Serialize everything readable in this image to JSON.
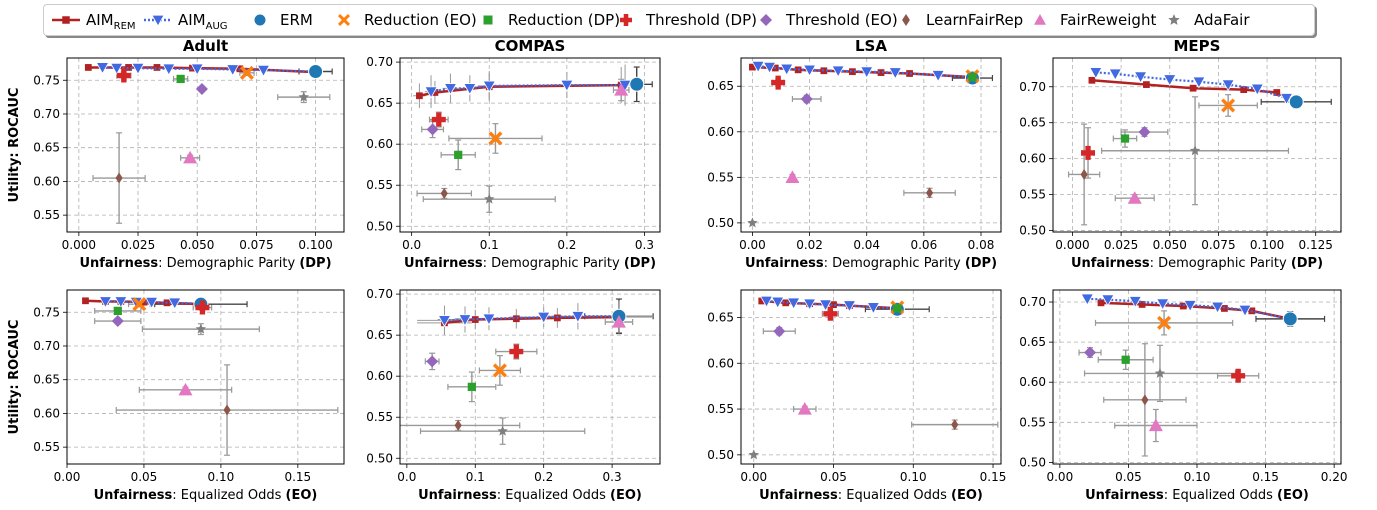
{
  "legend": [
    {
      "label": "AIM",
      "sub": "REM",
      "key": "aim_rem"
    },
    {
      "label": "AIM",
      "sub": "AUG",
      "key": "aim_aug"
    },
    {
      "label": "ERM",
      "key": "erm"
    },
    {
      "label": "Reduction (EO)",
      "key": "red_eo"
    },
    {
      "label": "Reduction (DP)",
      "key": "red_dp"
    },
    {
      "label": "Threshold (DP)",
      "key": "thr_dp"
    },
    {
      "label": "Threshold (EO)",
      "key": "thr_eo"
    },
    {
      "label": "LearnFairRep",
      "key": "lfr"
    },
    {
      "label": "FairReweight",
      "key": "frw"
    },
    {
      "label": "AdaFair",
      "key": "ada"
    }
  ],
  "styles": {
    "aim_rem": {
      "color": "#b22222",
      "marker": "square"
    },
    "aim_aug": {
      "color": "#4169e1",
      "marker": "tri_down"
    },
    "erm": {
      "color": "#1f77b4",
      "marker": "circle"
    },
    "red_eo": {
      "color": "#ff7f0e",
      "marker": "x"
    },
    "red_dp": {
      "color": "#2ca02c",
      "marker": "square"
    },
    "thr_dp": {
      "color": "#d62728",
      "marker": "plus"
    },
    "thr_eo": {
      "color": "#9467bd",
      "marker": "diamond"
    },
    "lfr": {
      "color": "#8c564b",
      "marker": "thin_diamond"
    },
    "frw": {
      "color": "#e377c2",
      "marker": "tri_up"
    },
    "ada": {
      "color": "#7f7f7f",
      "marker": "star"
    }
  },
  "ylabel_prefix": "Utility",
  "ylabel_suffix": ": ROCAUC",
  "xlabel_prefix": "Unfairness",
  "xlabel_dp": ": Demographic Parity ",
  "xlabel_dp_bold": "(DP)",
  "xlabel_eo": ": Equalized Odds ",
  "xlabel_eo_bold": "(EO)",
  "chart_data": [
    {
      "type": "scatter",
      "title": "Adult",
      "metric": "DP",
      "xlim": [
        -0.005,
        0.112
      ],
      "ylim": [
        0.525,
        0.783
      ],
      "xticks": [
        0,
        0.025,
        0.05,
        0.075,
        0.1
      ],
      "xtick_labels": [
        "0.000",
        "0.025",
        "0.050",
        "0.075",
        "0.100"
      ],
      "yticks": [
        0.55,
        0.6,
        0.65,
        0.7,
        0.75
      ],
      "ytick_labels": [
        "0.55",
        "0.60",
        "0.65",
        "0.70",
        "0.75"
      ],
      "aim_rem": [
        [
          0.004,
          0.769
        ],
        [
          0.021,
          0.769
        ],
        [
          0.033,
          0.769
        ],
        [
          0.048,
          0.768
        ],
        [
          0.068,
          0.767
        ],
        [
          0.1,
          0.762
        ]
      ],
      "aim_aug": [
        [
          0.01,
          0.769
        ],
        [
          0.016,
          0.768
        ],
        [
          0.025,
          0.768
        ],
        [
          0.038,
          0.767
        ],
        [
          0.05,
          0.767
        ],
        [
          0.065,
          0.766
        ],
        [
          0.078,
          0.765
        ],
        [
          0.1,
          0.763
        ]
      ],
      "erm": [
        0.1,
        0.763,
        0.007,
        0.004
      ],
      "red_eo": [
        0.071,
        0.761,
        0.003,
        0.004
      ],
      "red_dp": [
        0.043,
        0.752,
        0.003,
        0.004
      ],
      "thr_dp": [
        0.019,
        0.757,
        0.003,
        0.005
      ],
      "thr_eo": [
        0.052,
        0.737,
        0.0,
        0.003
      ],
      "lfr": [
        0.017,
        0.605,
        0.011,
        0.067
      ],
      "frw": [
        0.047,
        0.635,
        0.004,
        0.004
      ],
      "ada": [
        0.095,
        0.725,
        0.011,
        0.008
      ]
    },
    {
      "type": "scatter",
      "title": "COMPAS",
      "metric": "DP",
      "xlim": [
        -0.015,
        0.32
      ],
      "ylim": [
        0.493,
        0.705
      ],
      "xticks": [
        0,
        0.1,
        0.2,
        0.3
      ],
      "xtick_labels": [
        "0.0",
        "0.1",
        "0.2",
        "0.3"
      ],
      "yticks": [
        0.5,
        0.55,
        0.6,
        0.65,
        0.7
      ],
      "ytick_labels": [
        "0.50",
        "0.55",
        "0.60",
        "0.65",
        "0.70"
      ],
      "aim_rem": [
        [
          0.01,
          0.659,
          0.008,
          0.015
        ],
        [
          0.03,
          0.663,
          0.01,
          0.014
        ],
        [
          0.1,
          0.67,
          0.015,
          0.016
        ],
        [
          0.27,
          0.672,
          0.02,
          0.022
        ]
      ],
      "aim_aug": [
        [
          0.025,
          0.664,
          0.008,
          0.02
        ],
        [
          0.05,
          0.668,
          0.01,
          0.018
        ],
        [
          0.075,
          0.668,
          0.012,
          0.016
        ],
        [
          0.1,
          0.671,
          0.015,
          0.018
        ],
        [
          0.2,
          0.672,
          0.02,
          0.016
        ],
        [
          0.275,
          0.672,
          0.02,
          0.025
        ]
      ],
      "erm": [
        0.29,
        0.673,
        0.02,
        0.021
      ],
      "red_eo": [
        0.108,
        0.607,
        0.06,
        0.018
      ],
      "red_dp": [
        0.06,
        0.587,
        0.022,
        0.018
      ],
      "thr_dp": [
        0.035,
        0.63,
        0.012,
        0.009
      ],
      "thr_eo": [
        0.027,
        0.618,
        0.014,
        0.01
      ],
      "lfr": [
        0.042,
        0.54,
        0.035,
        0.006
      ],
      "frw": [
        0.27,
        0.666,
        0.01,
        0.013
      ],
      "ada": [
        0.1,
        0.533,
        0.085,
        0.016
      ]
    },
    {
      "type": "scatter",
      "title": "LSA",
      "metric": "DP",
      "xlim": [
        -0.004,
        0.087
      ],
      "ylim": [
        0.49,
        0.681
      ],
      "xticks": [
        0,
        0.02,
        0.04,
        0.06,
        0.08
      ],
      "xtick_labels": [
        "0.00",
        "0.02",
        "0.04",
        "0.06",
        "0.08"
      ],
      "yticks": [
        0.5,
        0.55,
        0.6,
        0.65
      ],
      "ytick_labels": [
        "0.50",
        "0.55",
        "0.60",
        "0.65"
      ],
      "aim_rem": [
        [
          0.0,
          0.671
        ],
        [
          0.008,
          0.67
        ],
        [
          0.016,
          0.668
        ],
        [
          0.025,
          0.667
        ],
        [
          0.035,
          0.666
        ],
        [
          0.045,
          0.665
        ],
        [
          0.055,
          0.664
        ],
        [
          0.077,
          0.66
        ]
      ],
      "aim_aug": [
        [
          0.002,
          0.672
        ],
        [
          0.006,
          0.671
        ],
        [
          0.012,
          0.669
        ],
        [
          0.02,
          0.668
        ],
        [
          0.03,
          0.667
        ],
        [
          0.04,
          0.666
        ],
        [
          0.05,
          0.665
        ],
        [
          0.065,
          0.662
        ],
        [
          0.077,
          0.66
        ]
      ],
      "erm": [
        0.077,
        0.659,
        0.007,
        0.004
      ],
      "red_eo": [
        0.077,
        0.661,
        0.0,
        0.002
      ],
      "red_dp": [
        0.077,
        0.66,
        0.0,
        0.002
      ],
      "thr_dp": [
        0.009,
        0.654,
        0.002,
        0.004
      ],
      "thr_eo": [
        0.019,
        0.636,
        0.005,
        0.004
      ],
      "lfr": [
        0.062,
        0.533,
        0.009,
        0.005
      ],
      "frw": [
        0.014,
        0.55,
        0.0,
        0.003
      ],
      "ada": [
        0.0,
        0.5,
        0.0,
        0.0
      ]
    },
    {
      "type": "scatter",
      "title": "MEPS",
      "metric": "DP",
      "xlim": [
        -0.01,
        0.138
      ],
      "ylim": [
        0.498,
        0.74
      ],
      "xticks": [
        0,
        0.025,
        0.05,
        0.075,
        0.1,
        0.125
      ],
      "xtick_labels": [
        "0.000",
        "0.025",
        "0.050",
        "0.075",
        "0.100",
        "0.125"
      ],
      "yticks": [
        0.5,
        0.55,
        0.6,
        0.65,
        0.7
      ],
      "ytick_labels": [
        "0.50",
        "0.55",
        "0.60",
        "0.65",
        "0.70"
      ],
      "aim_rem": [
        [
          0.01,
          0.709
        ],
        [
          0.038,
          0.703
        ],
        [
          0.062,
          0.698
        ],
        [
          0.088,
          0.696
        ],
        [
          0.105,
          0.692
        ],
        [
          0.115,
          0.679
        ]
      ],
      "aim_aug": [
        [
          0.012,
          0.72
        ],
        [
          0.022,
          0.718
        ],
        [
          0.035,
          0.714
        ],
        [
          0.05,
          0.71
        ],
        [
          0.065,
          0.707
        ],
        [
          0.08,
          0.703
        ],
        [
          0.095,
          0.697
        ],
        [
          0.11,
          0.684
        ],
        [
          0.115,
          0.679
        ]
      ],
      "erm": [
        0.115,
        0.679,
        0.018,
        0.009
      ],
      "red_eo": [
        0.08,
        0.674,
        0.015,
        0.015
      ],
      "red_dp": [
        0.027,
        0.628,
        0.006,
        0.012
      ],
      "thr_dp": [
        0.008,
        0.608,
        0.003,
        0.035
      ],
      "thr_eo": [
        0.037,
        0.637,
        0.012,
        0.006
      ],
      "lfr": [
        0.006,
        0.578,
        0.008,
        0.07
      ],
      "frw": [
        0.032,
        0.545,
        0.01,
        0.005
      ],
      "ada": [
        0.063,
        0.611,
        0.048,
        0.075
      ]
    },
    {
      "type": "scatter",
      "title": "",
      "metric": "EO",
      "xlim": [
        0.0,
        0.18
      ],
      "ylim": [
        0.525,
        0.783
      ],
      "xticks": [
        0,
        0.05,
        0.1,
        0.15
      ],
      "xtick_labels": [
        "0.00",
        "0.05",
        "0.10",
        "0.15"
      ],
      "yticks": [
        0.55,
        0.6,
        0.65,
        0.7,
        0.75
      ],
      "ytick_labels": [
        "0.55",
        "0.60",
        "0.65",
        "0.70",
        "0.75"
      ],
      "aim_rem": [
        [
          0.012,
          0.767
        ],
        [
          0.025,
          0.766
        ],
        [
          0.035,
          0.766
        ],
        [
          0.05,
          0.765
        ],
        [
          0.065,
          0.764
        ],
        [
          0.087,
          0.762
        ]
      ],
      "aim_aug": [
        [
          0.025,
          0.766
        ],
        [
          0.035,
          0.766
        ],
        [
          0.045,
          0.765
        ],
        [
          0.055,
          0.765
        ],
        [
          0.07,
          0.764
        ],
        [
          0.087,
          0.763
        ]
      ],
      "erm": [
        0.087,
        0.762,
        0.03,
        0.007
      ],
      "red_eo": [
        0.047,
        0.762,
        0.007,
        0.004
      ],
      "red_dp": [
        0.033,
        0.752,
        0.015,
        0.005
      ],
      "thr_dp": [
        0.088,
        0.757,
        0.006,
        0.005
      ],
      "thr_eo": [
        0.033,
        0.737,
        0.015,
        0.004
      ],
      "lfr": [
        0.104,
        0.605,
        0.072,
        0.067
      ],
      "frw": [
        0.077,
        0.635,
        0.03,
        0.004
      ],
      "ada": [
        0.087,
        0.725,
        0.038,
        0.008
      ]
    },
    {
      "type": "scatter",
      "title": "",
      "metric": "EO",
      "xlim": [
        -0.01,
        0.37
      ],
      "ylim": [
        0.493,
        0.705
      ],
      "xticks": [
        0,
        0.1,
        0.2,
        0.3
      ],
      "xtick_labels": [
        "0.0",
        "0.1",
        "0.2",
        "0.3"
      ],
      "yticks": [
        0.5,
        0.55,
        0.6,
        0.65,
        0.7
      ],
      "ytick_labels": [
        "0.50",
        "0.55",
        "0.60",
        "0.65",
        "0.70"
      ],
      "aim_rem": [
        [
          0.055,
          0.665,
          0.04,
          0.014
        ],
        [
          0.1,
          0.669,
          0.05,
          0.012
        ],
        [
          0.16,
          0.67,
          0.06,
          0.012
        ],
        [
          0.22,
          0.671,
          0.06,
          0.012
        ],
        [
          0.31,
          0.672,
          0.05,
          0.02
        ]
      ],
      "aim_aug": [
        [
          0.055,
          0.668,
          0.04,
          0.018
        ],
        [
          0.085,
          0.669,
          0.04,
          0.016
        ],
        [
          0.12,
          0.67,
          0.05,
          0.014
        ],
        [
          0.2,
          0.672,
          0.05,
          0.012
        ],
        [
          0.25,
          0.673,
          0.05,
          0.016
        ],
        [
          0.31,
          0.673,
          0.05,
          0.018
        ]
      ],
      "erm": [
        0.31,
        0.673,
        0.05,
        0.021
      ],
      "red_eo": [
        0.136,
        0.607,
        0.03,
        0.018
      ],
      "red_dp": [
        0.095,
        0.587,
        0.035,
        0.018
      ],
      "thr_dp": [
        0.16,
        0.63,
        0.03,
        0.009
      ],
      "thr_eo": [
        0.037,
        0.618,
        0.01,
        0.01
      ],
      "lfr": [
        0.075,
        0.54,
        0.09,
        0.006
      ],
      "frw": [
        0.31,
        0.666,
        0.02,
        0.013
      ],
      "ada": [
        0.14,
        0.533,
        0.12,
        0.016
      ]
    },
    {
      "type": "scatter",
      "title": "",
      "metric": "EO",
      "xlim": [
        -0.008,
        0.155
      ],
      "ylim": [
        0.49,
        0.68
      ],
      "xticks": [
        0,
        0.05,
        0.1,
        0.15
      ],
      "xtick_labels": [
        "0.00",
        "0.05",
        "0.10",
        "0.15"
      ],
      "yticks": [
        0.5,
        0.55,
        0.6,
        0.65
      ],
      "ytick_labels": [
        "0.50",
        "0.55",
        "0.60",
        "0.65"
      ],
      "aim_rem": [
        [
          0.005,
          0.668
        ],
        [
          0.02,
          0.666
        ],
        [
          0.035,
          0.665
        ],
        [
          0.05,
          0.664
        ],
        [
          0.06,
          0.663
        ],
        [
          0.09,
          0.66
        ]
      ],
      "aim_aug": [
        [
          0.008,
          0.668
        ],
        [
          0.015,
          0.667
        ],
        [
          0.025,
          0.666
        ],
        [
          0.035,
          0.665
        ],
        [
          0.045,
          0.664
        ],
        [
          0.06,
          0.663
        ],
        [
          0.075,
          0.661
        ],
        [
          0.09,
          0.66
        ]
      ],
      "erm": [
        0.09,
        0.659,
        0.02,
        0.004
      ],
      "red_eo": [
        0.09,
        0.661,
        0.0,
        0.002
      ],
      "red_dp": [
        0.09,
        0.66,
        0.0,
        0.002
      ],
      "thr_dp": [
        0.048,
        0.654,
        0.005,
        0.004
      ],
      "thr_eo": [
        0.016,
        0.635,
        0.01,
        0.004
      ],
      "lfr": [
        0.126,
        0.533,
        0.027,
        0.005
      ],
      "frw": [
        0.032,
        0.55,
        0.007,
        0.003
      ],
      "ada": [
        0.0,
        0.5,
        0.0,
        0.0
      ]
    },
    {
      "type": "scatter",
      "title": "",
      "metric": "EO",
      "xlim": [
        -0.005,
        0.205
      ],
      "ylim": [
        0.498,
        0.715
      ],
      "xticks": [
        0,
        0.05,
        0.1,
        0.15,
        0.2
      ],
      "xtick_labels": [
        "0.00",
        "0.05",
        "0.10",
        "0.15",
        "0.20"
      ],
      "yticks": [
        0.5,
        0.55,
        0.6,
        0.65,
        0.7
      ],
      "ytick_labels": [
        "0.50",
        "0.55",
        "0.60",
        "0.65",
        "0.70"
      ],
      "aim_rem": [
        [
          0.03,
          0.699
        ],
        [
          0.06,
          0.697
        ],
        [
          0.09,
          0.695
        ],
        [
          0.12,
          0.692
        ],
        [
          0.14,
          0.689
        ],
        [
          0.168,
          0.679
        ]
      ],
      "aim_aug": [
        [
          0.02,
          0.704
        ],
        [
          0.035,
          0.703
        ],
        [
          0.055,
          0.701
        ],
        [
          0.075,
          0.698
        ],
        [
          0.095,
          0.696
        ],
        [
          0.115,
          0.694
        ],
        [
          0.135,
          0.69
        ],
        [
          0.168,
          0.679
        ]
      ],
      "erm": [
        0.168,
        0.679,
        0.025,
        0.009
      ],
      "red_eo": [
        0.076,
        0.674,
        0.05,
        0.015
      ],
      "red_dp": [
        0.048,
        0.628,
        0.02,
        0.012
      ],
      "thr_dp": [
        0.13,
        0.608,
        0.015,
        0.006
      ],
      "thr_eo": [
        0.022,
        0.637,
        0.008,
        0.006
      ],
      "lfr": [
        0.062,
        0.578,
        0.03,
        0.07
      ],
      "frw": [
        0.07,
        0.546,
        0.03,
        0.02
      ],
      "ada": [
        0.073,
        0.611,
        0.055,
        0.035
      ]
    }
  ]
}
